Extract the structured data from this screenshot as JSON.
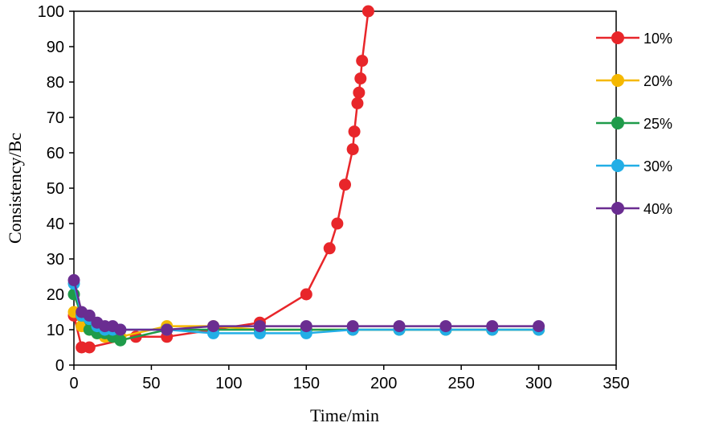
{
  "chart_data": {
    "type": "line",
    "title": "",
    "xlabel": "Time/min",
    "ylabel": "Consistency/Bc",
    "xlim": [
      0,
      350
    ],
    "ylim": [
      0,
      100
    ],
    "xticks": [
      "0",
      "50",
      "100",
      "150",
      "200",
      "250",
      "300",
      "350"
    ],
    "yticks": [
      "0",
      "10",
      "20",
      "30",
      "40",
      "50",
      "60",
      "70",
      "80",
      "90",
      "100"
    ],
    "grid": false,
    "legend_position": "right",
    "series": [
      {
        "name": "10%",
        "color": "#e8262a",
        "x": [
          0,
          5,
          10,
          40,
          60,
          120,
          150,
          165,
          170,
          175,
          180,
          181,
          183,
          184,
          185,
          186,
          190
        ],
        "y": [
          14,
          5,
          5,
          8,
          8,
          12,
          20,
          33,
          40,
          51,
          61,
          66,
          74,
          77,
          81,
          86,
          100
        ]
      },
      {
        "name": "20%",
        "color": "#f5b800",
        "x": [
          0,
          5,
          10,
          15,
          20,
          25,
          30,
          60,
          90,
          120,
          150,
          180,
          210,
          240,
          270,
          300
        ],
        "y": [
          15,
          11,
          10,
          9,
          8,
          8,
          8,
          11,
          11,
          10,
          10,
          10,
          10,
          10,
          10,
          10
        ]
      },
      {
        "name": "25%",
        "color": "#1f9b4a",
        "x": [
          0,
          5,
          10,
          15,
          20,
          25,
          30,
          60,
          90,
          120,
          150,
          180,
          210,
          240,
          270,
          300
        ],
        "y": [
          20,
          14,
          10,
          9,
          9,
          8,
          7,
          10,
          10,
          10,
          10,
          10,
          10,
          10,
          10,
          10
        ]
      },
      {
        "name": "30%",
        "color": "#22aee6",
        "x": [
          0,
          5,
          10,
          15,
          20,
          25,
          30,
          60,
          90,
          120,
          150,
          180,
          210,
          240,
          270,
          300
        ],
        "y": [
          23,
          14,
          13,
          11,
          10,
          10,
          10,
          10,
          9,
          9,
          9,
          10,
          10,
          10,
          10,
          10
        ]
      },
      {
        "name": "40%",
        "color": "#6a2d91",
        "x": [
          0,
          5,
          10,
          15,
          20,
          25,
          30,
          60,
          90,
          120,
          150,
          180,
          210,
          240,
          270,
          300
        ],
        "y": [
          24,
          15,
          14,
          12,
          11,
          11,
          10,
          10,
          11,
          11,
          11,
          11,
          11,
          11,
          11,
          11
        ]
      }
    ]
  }
}
